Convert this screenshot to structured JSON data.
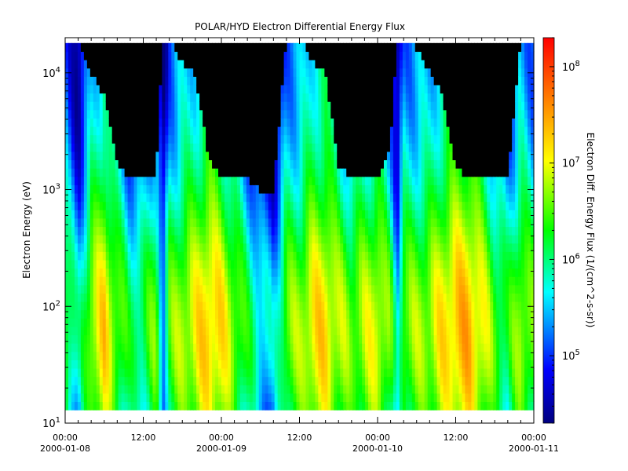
{
  "chart_data": {
    "type": "heatmap",
    "title": "POLAR/HYD  Electron Differential Energy Flux",
    "ylabel": "Electron Energy (eV)",
    "colorbar_label": "Electron Diff. Energy Flux (1/(cm^2-s-sr))",
    "y_scale": "log",
    "ylim": [
      10,
      20000
    ],
    "y_ticks": [
      {
        "value": 10,
        "base": "10",
        "exp": "1"
      },
      {
        "value": 100,
        "base": "10",
        "exp": "2"
      },
      {
        "value": 1000,
        "base": "10",
        "exp": "3"
      },
      {
        "value": 10000,
        "base": "10",
        "exp": "4"
      }
    ],
    "x_range_hours": [
      0,
      72
    ],
    "x_ticks": [
      {
        "hours": 0,
        "time": "00:00",
        "date": "2000-01-08"
      },
      {
        "hours": 12,
        "time": "12:00",
        "date": ""
      },
      {
        "hours": 24,
        "time": "00:00",
        "date": "2000-01-09"
      },
      {
        "hours": 36,
        "time": "12:00",
        "date": ""
      },
      {
        "hours": 48,
        "time": "00:00",
        "date": "2000-01-10"
      },
      {
        "hours": 60,
        "time": "12:00",
        "date": ""
      },
      {
        "hours": 72,
        "time": "00:00",
        "date": "2000-01-11"
      }
    ],
    "colorbar_scale": "log",
    "colorbar_range": [
      20000,
      200000000
    ],
    "colorbar_ticks": [
      {
        "value": 100000,
        "base": "10",
        "exp": "5"
      },
      {
        "value": 1000000,
        "base": "10",
        "exp": "6"
      },
      {
        "value": 10000000,
        "base": "10",
        "exp": "7"
      },
      {
        "value": 100000000,
        "base": "10",
        "exp": "8"
      }
    ],
    "colormap": [
      "#00007f",
      "#0000ff",
      "#00ffff",
      "#00ff00",
      "#ffff00",
      "#ff7f00",
      "#ff0000"
    ],
    "fill_color": "#000000",
    "data_energy_range": [
      13,
      18000
    ],
    "intensity_profile": {
      "description_hours": [
        0,
        2,
        4,
        6,
        8,
        10,
        12,
        14,
        15,
        16,
        18,
        20,
        22,
        24,
        26,
        28,
        30,
        32,
        34,
        36,
        38,
        40,
        42,
        44,
        46,
        48,
        50,
        51,
        52,
        54,
        56,
        58,
        60,
        62,
        64,
        66,
        68,
        70,
        72
      ],
      "peak_log_flux": [
        6.3,
        5.5,
        6.6,
        7.0,
        6.4,
        5.9,
        6.0,
        6.4,
        5.2,
        6.3,
        6.6,
        6.8,
        7.1,
        6.9,
        6.5,
        6.0,
        5.6,
        5.3,
        6.4,
        6.5,
        6.9,
        7.0,
        6.6,
        6.4,
        6.6,
        6.8,
        6.3,
        5.4,
        6.4,
        6.5,
        6.6,
        6.9,
        7.1,
        7.2,
        6.8,
        6.3,
        6.0,
        6.6,
        6.3
      ],
      "upper_cutoff_log_ev": [
        4.3,
        4.3,
        4.0,
        3.8,
        3.2,
        3.1,
        3.1,
        3.1,
        4.3,
        4.3,
        4.1,
        4.0,
        3.3,
        3.1,
        3.1,
        3.1,
        3.0,
        3.0,
        4.3,
        4.3,
        4.1,
        4.0,
        3.2,
        3.1,
        3.1,
        3.1,
        3.4,
        4.3,
        4.3,
        4.2,
        4.0,
        3.8,
        3.2,
        3.1,
        3.1,
        3.1,
        3.1,
        4.3,
        4.3
      ]
    }
  }
}
